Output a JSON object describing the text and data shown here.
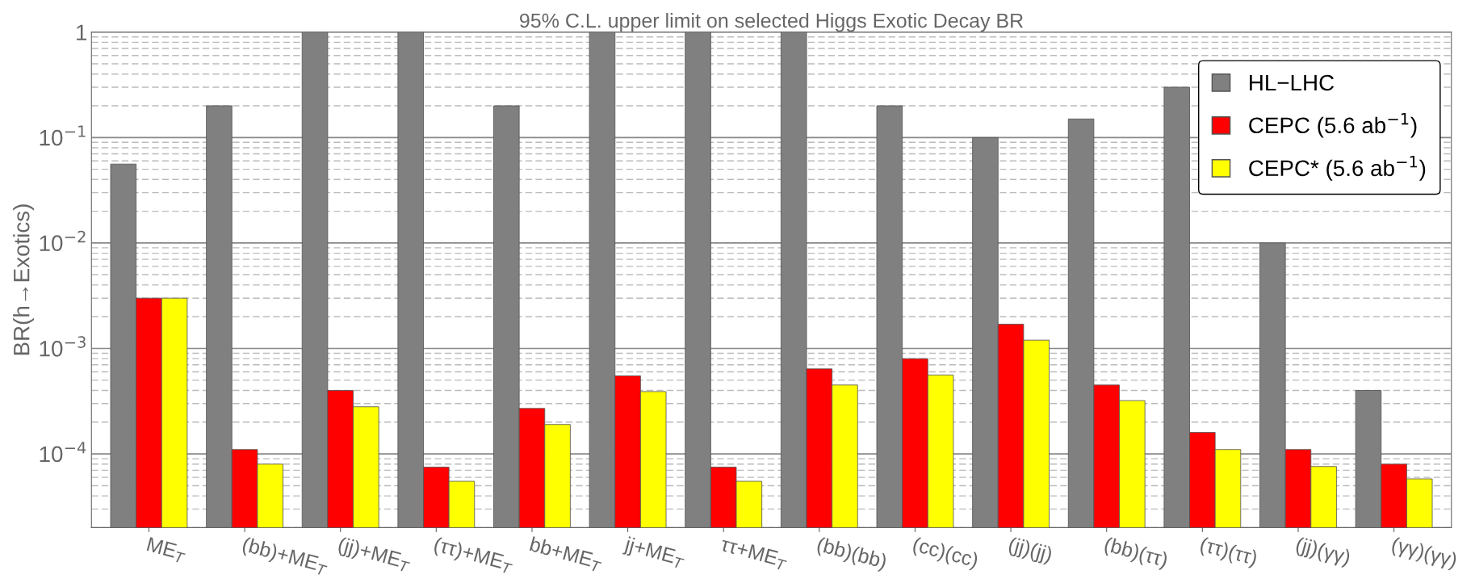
{
  "chart_data": {
    "type": "bar",
    "title": "95% C.L. upper limit on selected Higgs Exotic Decay BR",
    "ylabel": "BR(h→Exotics)",
    "categories": [
      "ME$_{T}$",
      "(bb)+ME$_{T}$",
      "(jj)+ME$_{T}$",
      "(ττ)+ME$_{T}$",
      "bb+ME$_{T}$",
      "jj+ME$_{T}$",
      "ττ+ME$_{T}$",
      "(bb)(bb)",
      "(cc)(cc)",
      "(jj)(jj)",
      "(bb)(ττ)",
      "(ττ)(ττ)",
      "(jj)(γγ)",
      "(γγ)(γγ)"
    ],
    "series": [
      {
        "name": "HL−LHC",
        "color": "#808080",
        "values": [
          0.056,
          0.2,
          1,
          1,
          0.2,
          1,
          1,
          1,
          0.2,
          0.1,
          0.15,
          0.3,
          0.01,
          0.0004
        ]
      },
      {
        "name": "CEPC (5.6 ab$^{−1}$)",
        "color": "#ff0000",
        "values": [
          0.003,
          0.00011,
          0.0004,
          7.5e-05,
          0.00027,
          0.00055,
          7.5e-05,
          0.00064,
          0.0008,
          0.0017,
          0.00045,
          0.00016,
          0.00011,
          8e-05
        ]
      },
      {
        "name": "CEPC* (5.6 ab$^{−1}$)",
        "color": "#ffff00",
        "values": [
          0.003,
          8e-05,
          0.00028,
          5.5e-05,
          0.00019,
          0.00039,
          5.5e-05,
          0.00045,
          0.00056,
          0.0012,
          0.00032,
          0.00011,
          7.6e-05,
          5.8e-05
        ]
      }
    ],
    "log": "y",
    "ylim": [
      2e-05,
      1
    ],
    "yticks": [
      {
        "value": 0.0001,
        "label": "10$^{−4}$"
      },
      {
        "value": 0.001,
        "label": "10$^{−3}$"
      },
      {
        "value": 0.01,
        "label": "10$^{−2}$"
      },
      {
        "value": 0.1,
        "label": "10$^{−1}$"
      },
      1
    ],
    "grid": "y",
    "legend": "top right"
  }
}
